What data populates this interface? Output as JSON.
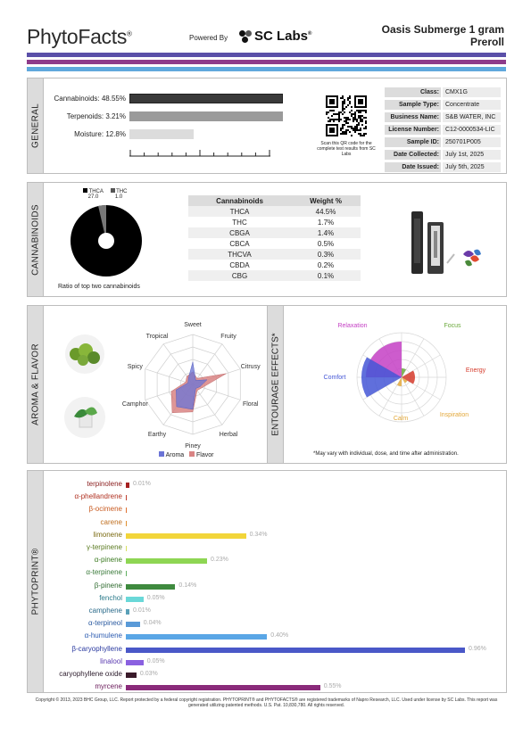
{
  "header": {
    "brand": "PhytoFacts",
    "brand_mark": "®",
    "powered_by": "Powered By",
    "lab_logo": "SC Labs",
    "lab_logo_mark": "®",
    "product_line1": "Oasis Submerge 1 gram",
    "product_line2": "Preroll"
  },
  "colors": {
    "stripe1": "#5a4fa8",
    "stripe2": "#8e3b8a",
    "stripe3": "#5fa8dc",
    "gauge_cannabinoids": "#3a3a3a",
    "gauge_terpenoids": "#9a9a9a",
    "gauge_moisture": "#dcdcdc"
  },
  "general": {
    "label": "GENERAL",
    "gauges": [
      {
        "label": "Cannabinoids:",
        "value": "48.55%",
        "fraction": 0.4855
      },
      {
        "label": "Terpenoids:",
        "value": "3.21%",
        "fraction": 0.0321
      },
      {
        "label": "Moisture:",
        "value": "12.8%",
        "fraction": 0.128
      }
    ],
    "qr_caption": "Scan this QR code for the complete test results from SC Labs",
    "info": [
      {
        "key": "Class:",
        "value": "CMX1G"
      },
      {
        "key": "Sample Type:",
        "value": "Concentrate"
      },
      {
        "key": "Business Name:",
        "value": "S&B WATER, INC"
      },
      {
        "key": "License Number:",
        "value": "C12-0000534-LIC"
      },
      {
        "key": "Sample ID:",
        "value": "250701P005"
      },
      {
        "key": "Date Collected:",
        "value": "July 1st, 2025"
      },
      {
        "key": "Date Issued:",
        "value": "July 5th, 2025"
      }
    ]
  },
  "cannabinoids": {
    "label": "CANNABINOIDS",
    "pie_caption": "Ratio of top two cannabinoids",
    "legend": [
      {
        "name": "THCA",
        "value": "27.0"
      },
      {
        "name": "THC",
        "value": "1.0"
      }
    ],
    "table_headers": [
      "Cannabinoids",
      "Weight %"
    ],
    "table_rows": [
      {
        "name": "THCA",
        "weight": "44.5%"
      },
      {
        "name": "THC",
        "weight": "1.7%"
      },
      {
        "name": "CBGA",
        "weight": "1.4%"
      },
      {
        "name": "CBCA",
        "weight": "0.5%"
      },
      {
        "name": "THCVA",
        "weight": "0.3%"
      },
      {
        "name": "CBDA",
        "weight": "0.2%"
      },
      {
        "name": "CBG",
        "weight": "0.1%"
      }
    ]
  },
  "aroma": {
    "label": "AROMA & FLAVOR",
    "axes": [
      "Sweet",
      "Fruity",
      "Citrusy",
      "Floral",
      "Herbal",
      "Piney",
      "Earthy",
      "Camphor",
      "Spicy",
      "Tropical"
    ],
    "legend": [
      {
        "name": "Aroma",
        "color": "#6b74d6"
      },
      {
        "name": "Flavor",
        "color": "#d98484"
      }
    ]
  },
  "entourage": {
    "label": "ENTOURAGE EFFECTS*",
    "effects": [
      {
        "name": "Relaxation",
        "color": "#c43fc4"
      },
      {
        "name": "Focus",
        "color": "#6aa83a"
      },
      {
        "name": "Energy",
        "color": "#d53a2a"
      },
      {
        "name": "Inspiration",
        "color": "#e3a83a"
      },
      {
        "name": "Calm",
        "color": "#e3a83a"
      },
      {
        "name": "Comfort",
        "color": "#4456d6"
      }
    ],
    "note": "*May vary with individual, dose, and time after administration."
  },
  "phytoprint": {
    "label": "PHYTOPRINT®",
    "items": [
      {
        "name": "terpinolene",
        "value": "0.01%",
        "pct": 0.01,
        "color": "#a52020",
        "label_color": "#8a1d1d"
      },
      {
        "name": "α-phellandrene",
        "value": "",
        "pct": 0,
        "color": "#c04030",
        "label_color": "#b03020"
      },
      {
        "name": "β-ocimene",
        "value": "",
        "pct": 0,
        "color": "#e07030",
        "label_color": "#c85a20"
      },
      {
        "name": "carene",
        "value": "",
        "pct": 0,
        "color": "#e09030",
        "label_color": "#c07020"
      },
      {
        "name": "limonene",
        "value": "0.34%",
        "pct": 0.34,
        "color": "#f2d53a",
        "label_color": "#7a6a10"
      },
      {
        "name": "γ-terpinene",
        "value": "",
        "pct": 0,
        "color": "#d8e060",
        "label_color": "#5a7a20"
      },
      {
        "name": "α-pinene",
        "value": "0.23%",
        "pct": 0.23,
        "color": "#8ed653",
        "label_color": "#3a7a20"
      },
      {
        "name": "α-terpinene",
        "value": "",
        "pct": 0,
        "color": "#60b060",
        "label_color": "#3a7a3a"
      },
      {
        "name": "β-pinene",
        "value": "0.14%",
        "pct": 0.14,
        "color": "#3e8a3e",
        "label_color": "#2e6a2e"
      },
      {
        "name": "fenchol",
        "value": "0.05%",
        "pct": 0.05,
        "color": "#6ad8d8",
        "label_color": "#2a7a8a"
      },
      {
        "name": "camphene",
        "value": "0.01%",
        "pct": 0.01,
        "color": "#5aa0b8",
        "label_color": "#2a6a8a"
      },
      {
        "name": "α-terpineol",
        "value": "0.04%",
        "pct": 0.04,
        "color": "#5a9ad8",
        "label_color": "#2a5aa0"
      },
      {
        "name": "α-humulene",
        "value": "0.40%",
        "pct": 0.4,
        "color": "#5aa6e6",
        "label_color": "#2a5ab0"
      },
      {
        "name": "β-caryophyllene",
        "value": "0.96%",
        "pct": 0.96,
        "color": "#4a58c8",
        "label_color": "#2a3aa0"
      },
      {
        "name": "linalool",
        "value": "0.05%",
        "pct": 0.05,
        "color": "#8a60e0",
        "label_color": "#5a3ab0"
      },
      {
        "name": "caryophyllene oxide",
        "value": "0.03%",
        "pct": 0.03,
        "color": "#3a1a2a",
        "label_color": "#2a1a2a"
      },
      {
        "name": "myrcene",
        "value": "0.55%",
        "pct": 0.55,
        "color": "#8a2a7a",
        "label_color": "#6a1a5a"
      }
    ]
  },
  "footer": {
    "text": "Copyright © 2013, 2023 BHC Group, LLC. Report protected by a federal copyright registration. PHYTOPRINT® and PHYTOFACTS® are registered trademarks of Napro Research, LLC. Used under license by SC Labs. This report was generated utilizing patented methods. U.S. Pat. 10,830,780. All rights reserved."
  }
}
